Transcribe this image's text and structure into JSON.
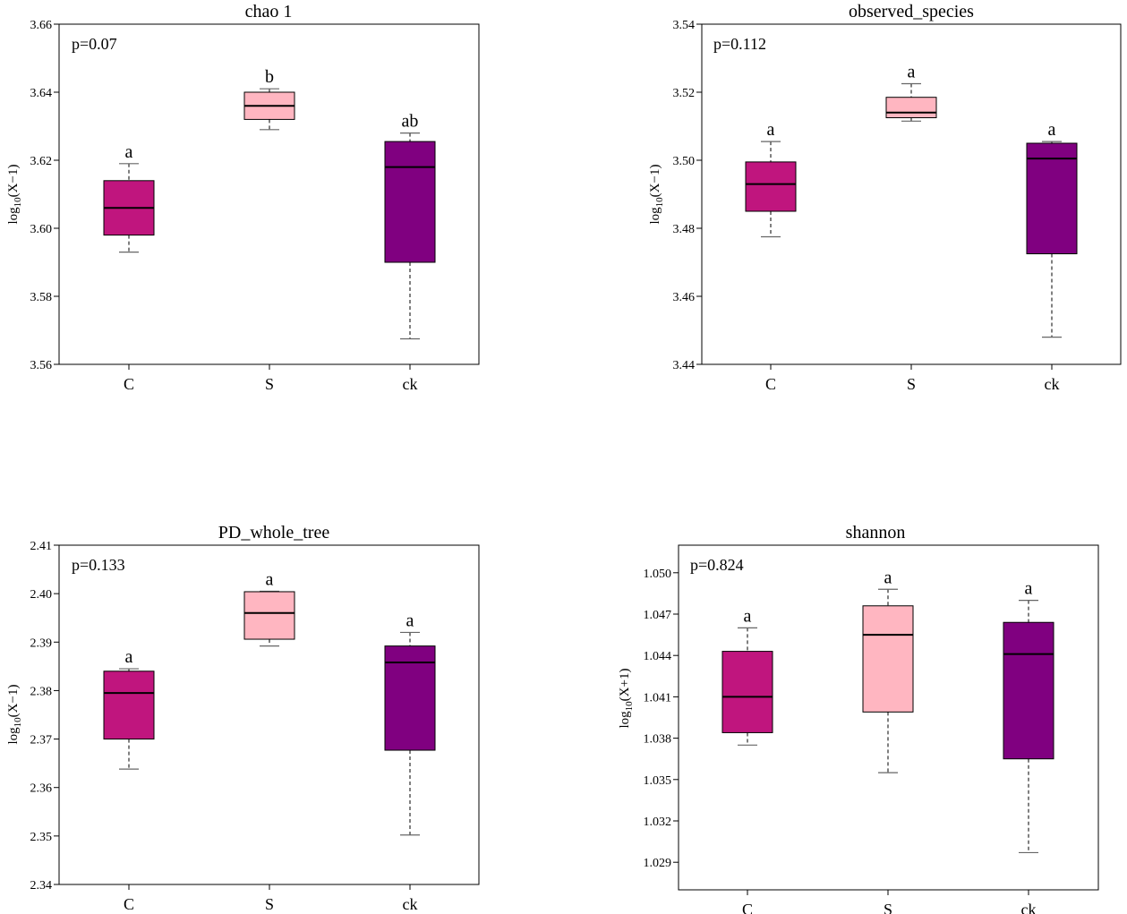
{
  "colors": {
    "C": "#c0157e",
    "S": "#ffb6c1",
    "ck": "#800080"
  },
  "chart_data": [
    {
      "type": "box",
      "title": "chao 1",
      "p_text": "p=0.07",
      "ylabel": {
        "base": "log",
        "sub": "10",
        "arg": "(X−1)"
      },
      "ylim": [
        3.56,
        3.66
      ],
      "yticks": [
        "3.56",
        "3.58",
        "3.60",
        "3.62",
        "3.64",
        "3.66"
      ],
      "categories": [
        "C",
        "S",
        "ck"
      ],
      "boxes": [
        {
          "name": "C",
          "min": 3.593,
          "q1": 3.598,
          "median": 3.606,
          "q3": 3.614,
          "max": 3.619,
          "letter": "a"
        },
        {
          "name": "S",
          "min": 3.629,
          "q1": 3.632,
          "median": 3.636,
          "q3": 3.64,
          "max": 3.641,
          "letter": "b"
        },
        {
          "name": "ck",
          "min": 3.5675,
          "q1": 3.59,
          "median": 3.618,
          "q3": 3.6255,
          "max": 3.628,
          "letter": "ab"
        }
      ]
    },
    {
      "type": "box",
      "title": "observed_species",
      "p_text": "p=0.112",
      "ylabel": {
        "base": "log",
        "sub": "10",
        "arg": "(X−1)"
      },
      "ylim": [
        3.44,
        3.54
      ],
      "yticks": [
        "3.44",
        "3.46",
        "3.48",
        "3.50",
        "3.52",
        "3.54"
      ],
      "categories": [
        "C",
        "S",
        "ck"
      ],
      "boxes": [
        {
          "name": "C",
          "min": 3.4775,
          "q1": 3.485,
          "median": 3.493,
          "q3": 3.4995,
          "max": 3.5055,
          "letter": "a"
        },
        {
          "name": "S",
          "min": 3.5115,
          "q1": 3.5125,
          "median": 3.514,
          "q3": 3.5185,
          "max": 3.5225,
          "letter": "a"
        },
        {
          "name": "ck",
          "min": 3.448,
          "q1": 3.4725,
          "median": 3.5005,
          "q3": 3.505,
          "max": 3.5055,
          "letter": "a"
        }
      ]
    },
    {
      "type": "box",
      "title": "PD_whole_tree",
      "p_text": "p=0.133",
      "ylabel": {
        "base": "log",
        "sub": "10",
        "arg": "(X−1)"
      },
      "ylim": [
        2.34,
        2.41
      ],
      "yticks": [
        "2.34",
        "2.35",
        "2.36",
        "2.37",
        "2.38",
        "2.39",
        "2.40",
        "2.41"
      ],
      "categories": [
        "C",
        "S",
        "ck"
      ],
      "boxes": [
        {
          "name": "C",
          "min": 2.3638,
          "q1": 2.37,
          "median": 2.3795,
          "q3": 2.384,
          "max": 2.3845,
          "letter": "a"
        },
        {
          "name": "S",
          "min": 2.3892,
          "q1": 2.3906,
          "median": 2.396,
          "q3": 2.4004,
          "max": 2.4005,
          "letter": "a"
        },
        {
          "name": "ck",
          "min": 2.3502,
          "q1": 2.3677,
          "median": 2.3858,
          "q3": 2.3892,
          "max": 2.392,
          "letter": "a"
        }
      ]
    },
    {
      "type": "box",
      "title": "shannon",
      "p_text": "p=0.824",
      "ylabel": {
        "base": "log",
        "sub": "10",
        "arg": "(X+1)"
      },
      "ylim": [
        1.027,
        1.052
      ],
      "yticks": [
        "1.029",
        "1.032",
        "1.035",
        "1.038",
        "1.041",
        "1.044",
        "1.047",
        "1.050"
      ],
      "categories": [
        "C",
        "S",
        "ck"
      ],
      "boxes": [
        {
          "name": "C",
          "min": 1.0375,
          "q1": 1.0384,
          "median": 1.041,
          "q3": 1.0443,
          "max": 1.046,
          "letter": "a"
        },
        {
          "name": "S",
          "min": 1.0355,
          "q1": 1.0399,
          "median": 1.0455,
          "q3": 1.0476,
          "max": 1.0488,
          "letter": "a"
        },
        {
          "name": "ck",
          "min": 1.0297,
          "q1": 1.0365,
          "median": 1.0441,
          "q3": 1.0464,
          "max": 1.048,
          "letter": "a"
        }
      ]
    }
  ]
}
